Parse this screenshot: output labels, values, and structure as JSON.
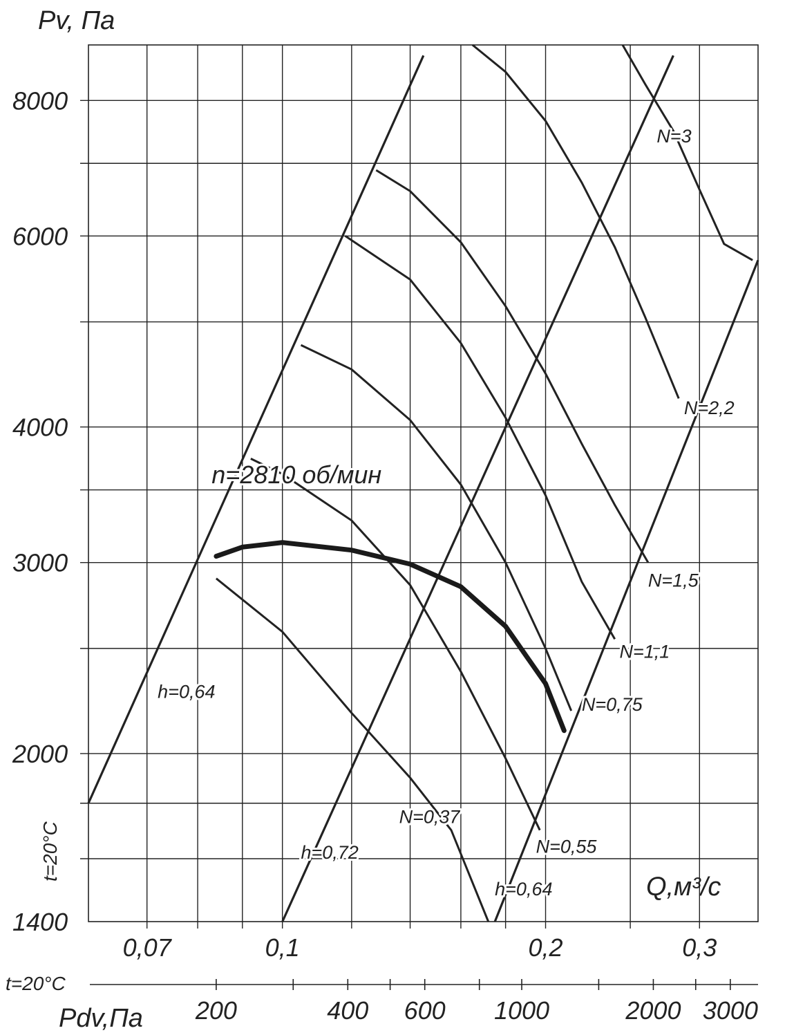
{
  "chart_data": {
    "type": "line",
    "title": "",
    "ylabel": "Pv, Па",
    "xlabel": "Q,м³/с",
    "y_scale": "log",
    "x_scale": "log",
    "ylim": [
      1400,
      9000
    ],
    "xlim": [
      0.06,
      0.35
    ],
    "y_ticks": [
      {
        "value": 1400,
        "label": "1400"
      },
      {
        "value": 2000,
        "label": "2000"
      },
      {
        "value": 3000,
        "label": "3000"
      },
      {
        "value": 4000,
        "label": "4000"
      },
      {
        "value": 6000,
        "label": "6000"
      },
      {
        "value": 8000,
        "label": "8000"
      }
    ],
    "y_minor_gridlines": [
      1600,
      1800,
      2500,
      3500,
      5000,
      7000
    ],
    "x_ticks": [
      {
        "value": 0.07,
        "label": "0,07"
      },
      {
        "value": 0.1,
        "label": "0,1"
      },
      {
        "value": 0.2,
        "label": "0,2"
      },
      {
        "value": 0.3,
        "label": "0,3"
      }
    ],
    "x_minor_gridlines": [
      0.08,
      0.09,
      0.12,
      0.14,
      0.16,
      0.18,
      0.25
    ],
    "grid": true,
    "pdv_axis": {
      "label": "Pdv,Па",
      "ticks": [
        {
          "value": 200,
          "label": "200"
        },
        {
          "value": 400,
          "label": "400"
        },
        {
          "value": 600,
          "label": "600"
        },
        {
          "value": 1000,
          "label": "1000"
        },
        {
          "value": 2000,
          "label": "2000"
        },
        {
          "value": 3000,
          "label": "3000"
        }
      ],
      "minor_ticks": [
        300,
        500,
        800,
        1500,
        2500
      ]
    },
    "temperature_labels": [
      "t=20°C",
      "t=20°C"
    ],
    "operating_curve": {
      "name": "n=2810 об/мин",
      "points": [
        [
          0.084,
          3040
        ],
        [
          0.09,
          3100
        ],
        [
          0.1,
          3130
        ],
        [
          0.12,
          3080
        ],
        [
          0.14,
          2990
        ],
        [
          0.16,
          2850
        ],
        [
          0.18,
          2620
        ],
        [
          0.2,
          2320
        ],
        [
          0.21,
          2100
        ]
      ]
    },
    "efficiency_lines": [
      {
        "name": "h=0,64",
        "points": [
          [
            0.06,
            1800
          ],
          [
            0.145,
            8800
          ]
        ],
        "label_at": [
          0.072,
          2250
        ]
      },
      {
        "name": "h=0,72",
        "points": [
          [
            0.1,
            1400
          ],
          [
            0.28,
            8800
          ]
        ],
        "label_at": [
          0.105,
          1600
        ]
      },
      {
        "name": "h=0,64",
        "points": [
          [
            0.175,
            1400
          ],
          [
            0.35,
            5700
          ]
        ],
        "label_at": [
          0.175,
          1480
        ]
      }
    ],
    "power_curves": [
      {
        "name": "N=0,37",
        "points": [
          [
            0.084,
            2900
          ],
          [
            0.1,
            2590
          ],
          [
            0.12,
            2180
          ],
          [
            0.14,
            1900
          ],
          [
            0.156,
            1700
          ],
          [
            0.172,
            1400
          ]
        ],
        "label_at": [
          0.136,
          1725
        ]
      },
      {
        "name": "N=0,55",
        "points": [
          [
            0.092,
            3740
          ],
          [
            0.1,
            3620
          ],
          [
            0.12,
            3280
          ],
          [
            0.14,
            2860
          ],
          [
            0.16,
            2380
          ],
          [
            0.18,
            1980
          ],
          [
            0.197,
            1700
          ]
        ],
        "label_at": [
          0.195,
          1620
        ]
      },
      {
        "name": "N=0,75",
        "points": [
          [
            0.105,
            4760
          ],
          [
            0.12,
            4520
          ],
          [
            0.14,
            4060
          ],
          [
            0.16,
            3540
          ],
          [
            0.18,
            3000
          ],
          [
            0.2,
            2500
          ],
          [
            0.214,
            2190
          ]
        ],
        "label_at": [
          0.22,
          2190
        ]
      },
      {
        "name": "N=1,1",
        "points": [
          [
            0.118,
            6000
          ],
          [
            0.14,
            5470
          ],
          [
            0.16,
            4780
          ],
          [
            0.18,
            4080
          ],
          [
            0.2,
            3460
          ],
          [
            0.22,
            2880
          ],
          [
            0.24,
            2550
          ]
        ],
        "label_at": [
          0.243,
          2450
        ]
      },
      {
        "name": "N=1,5",
        "points": [
          [
            0.128,
            6900
          ],
          [
            0.14,
            6600
          ],
          [
            0.16,
            5920
          ],
          [
            0.18,
            5170
          ],
          [
            0.2,
            4480
          ],
          [
            0.22,
            3860
          ],
          [
            0.24,
            3390
          ],
          [
            0.262,
            3000
          ]
        ],
        "label_at": [
          0.262,
          2850
        ]
      },
      {
        "name": "N=2,2",
        "points": [
          [
            0.165,
            9000
          ],
          [
            0.18,
            8500
          ],
          [
            0.2,
            7660
          ],
          [
            0.22,
            6720
          ],
          [
            0.24,
            5860
          ],
          [
            0.26,
            5050
          ],
          [
            0.284,
            4250
          ]
        ],
        "label_at": [
          0.288,
          4110
        ]
      },
      {
        "name": "N=3",
        "points": [
          [
            0.245,
            9000
          ],
          [
            0.26,
            8280
          ],
          [
            0.28,
            7500
          ],
          [
            0.3,
            6620
          ],
          [
            0.32,
            5900
          ],
          [
            0.345,
            5700
          ]
        ],
        "label_at": [
          0.268,
          7320
        ]
      }
    ],
    "annotations": [
      "n=2810 об/мин"
    ]
  }
}
